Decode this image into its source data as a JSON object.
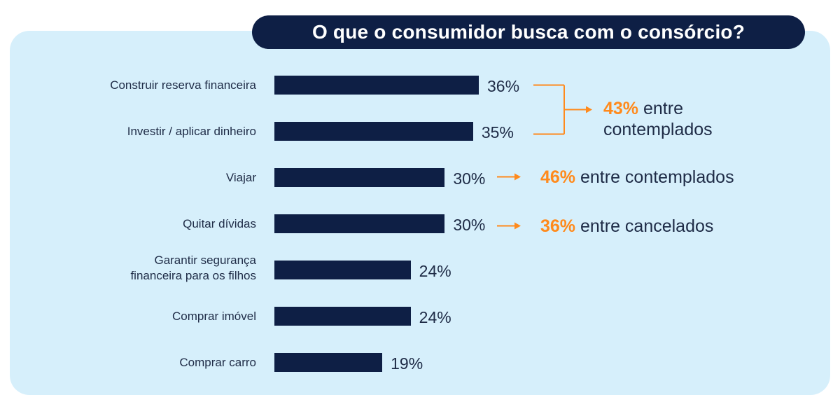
{
  "colors": {
    "panel_bg": "#d6effb",
    "bar": "#0e1f45",
    "title_bg": "#0e1f45",
    "accent": "#ff8a1c",
    "text": "#1e2b46"
  },
  "chart_data": {
    "type": "bar",
    "orientation": "horizontal",
    "title": "O que o consumidor busca com o consórcio?",
    "categories": [
      "Construir reserva financeira",
      "Investir / aplicar dinheiro",
      "Viajar",
      "Quitar dívidas",
      "Garantir segurança\nfinanceira para os filhos",
      "Comprar imóvel",
      "Comprar carro"
    ],
    "values": [
      36,
      35,
      30,
      30,
      24,
      24,
      19
    ],
    "value_labels": [
      "36%",
      "35%",
      "30%",
      "30%",
      "24%",
      "24%",
      "19%"
    ],
    "xlim": [
      0,
      36
    ],
    "grid": false,
    "annotations": [
      {
        "targets": [
          0,
          1
        ],
        "highlight": "43%",
        "text": " entre\ncontemplados"
      },
      {
        "targets": [
          2
        ],
        "highlight": "46%",
        "text": " entre contemplados"
      },
      {
        "targets": [
          3
        ],
        "highlight": "36%",
        "text": " entre cancelados"
      }
    ]
  }
}
